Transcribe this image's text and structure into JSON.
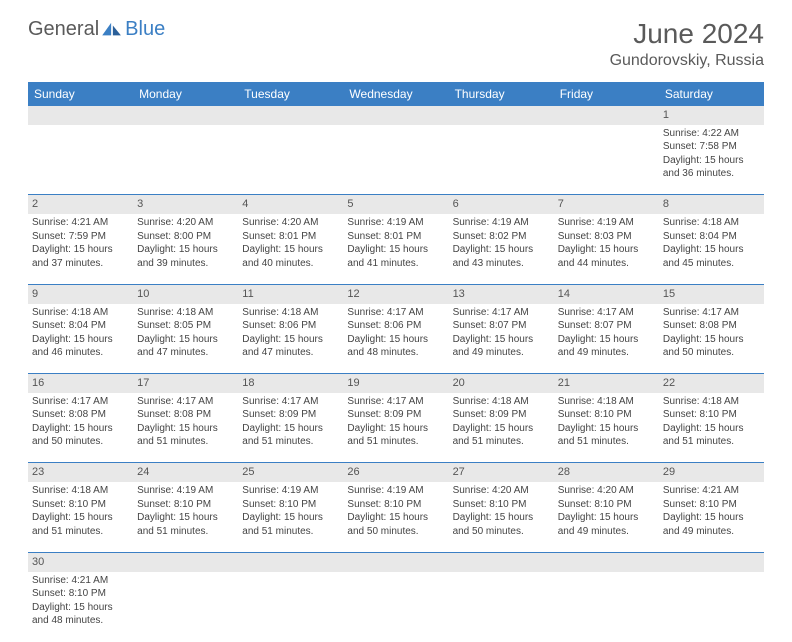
{
  "brand": {
    "part1": "General",
    "part2": "Blue"
  },
  "title": "June 2024",
  "location": "Gundorovskiy, Russia",
  "colors": {
    "header_bg": "#3b7fc4",
    "header_text": "#ffffff",
    "daynum_bg": "#e8e8e8",
    "border": "#3b7fc4",
    "text": "#444444",
    "brand_gray": "#5a5a5a",
    "brand_blue": "#3b7fc4"
  },
  "weekdays": [
    "Sunday",
    "Monday",
    "Tuesday",
    "Wednesday",
    "Thursday",
    "Friday",
    "Saturday"
  ],
  "weeks": [
    [
      null,
      null,
      null,
      null,
      null,
      null,
      {
        "n": "1",
        "sr": "4:22 AM",
        "ss": "7:58 PM",
        "dl": "15 hours and 36 minutes."
      }
    ],
    [
      {
        "n": "2",
        "sr": "4:21 AM",
        "ss": "7:59 PM",
        "dl": "15 hours and 37 minutes."
      },
      {
        "n": "3",
        "sr": "4:20 AM",
        "ss": "8:00 PM",
        "dl": "15 hours and 39 minutes."
      },
      {
        "n": "4",
        "sr": "4:20 AM",
        "ss": "8:01 PM",
        "dl": "15 hours and 40 minutes."
      },
      {
        "n": "5",
        "sr": "4:19 AM",
        "ss": "8:01 PM",
        "dl": "15 hours and 41 minutes."
      },
      {
        "n": "6",
        "sr": "4:19 AM",
        "ss": "8:02 PM",
        "dl": "15 hours and 43 minutes."
      },
      {
        "n": "7",
        "sr": "4:19 AM",
        "ss": "8:03 PM",
        "dl": "15 hours and 44 minutes."
      },
      {
        "n": "8",
        "sr": "4:18 AM",
        "ss": "8:04 PM",
        "dl": "15 hours and 45 minutes."
      }
    ],
    [
      {
        "n": "9",
        "sr": "4:18 AM",
        "ss": "8:04 PM",
        "dl": "15 hours and 46 minutes."
      },
      {
        "n": "10",
        "sr": "4:18 AM",
        "ss": "8:05 PM",
        "dl": "15 hours and 47 minutes."
      },
      {
        "n": "11",
        "sr": "4:18 AM",
        "ss": "8:06 PM",
        "dl": "15 hours and 47 minutes."
      },
      {
        "n": "12",
        "sr": "4:17 AM",
        "ss": "8:06 PM",
        "dl": "15 hours and 48 minutes."
      },
      {
        "n": "13",
        "sr": "4:17 AM",
        "ss": "8:07 PM",
        "dl": "15 hours and 49 minutes."
      },
      {
        "n": "14",
        "sr": "4:17 AM",
        "ss": "8:07 PM",
        "dl": "15 hours and 49 minutes."
      },
      {
        "n": "15",
        "sr": "4:17 AM",
        "ss": "8:08 PM",
        "dl": "15 hours and 50 minutes."
      }
    ],
    [
      {
        "n": "16",
        "sr": "4:17 AM",
        "ss": "8:08 PM",
        "dl": "15 hours and 50 minutes."
      },
      {
        "n": "17",
        "sr": "4:17 AM",
        "ss": "8:08 PM",
        "dl": "15 hours and 51 minutes."
      },
      {
        "n": "18",
        "sr": "4:17 AM",
        "ss": "8:09 PM",
        "dl": "15 hours and 51 minutes."
      },
      {
        "n": "19",
        "sr": "4:17 AM",
        "ss": "8:09 PM",
        "dl": "15 hours and 51 minutes."
      },
      {
        "n": "20",
        "sr": "4:18 AM",
        "ss": "8:09 PM",
        "dl": "15 hours and 51 minutes."
      },
      {
        "n": "21",
        "sr": "4:18 AM",
        "ss": "8:10 PM",
        "dl": "15 hours and 51 minutes."
      },
      {
        "n": "22",
        "sr": "4:18 AM",
        "ss": "8:10 PM",
        "dl": "15 hours and 51 minutes."
      }
    ],
    [
      {
        "n": "23",
        "sr": "4:18 AM",
        "ss": "8:10 PM",
        "dl": "15 hours and 51 minutes."
      },
      {
        "n": "24",
        "sr": "4:19 AM",
        "ss": "8:10 PM",
        "dl": "15 hours and 51 minutes."
      },
      {
        "n": "25",
        "sr": "4:19 AM",
        "ss": "8:10 PM",
        "dl": "15 hours and 51 minutes."
      },
      {
        "n": "26",
        "sr": "4:19 AM",
        "ss": "8:10 PM",
        "dl": "15 hours and 50 minutes."
      },
      {
        "n": "27",
        "sr": "4:20 AM",
        "ss": "8:10 PM",
        "dl": "15 hours and 50 minutes."
      },
      {
        "n": "28",
        "sr": "4:20 AM",
        "ss": "8:10 PM",
        "dl": "15 hours and 49 minutes."
      },
      {
        "n": "29",
        "sr": "4:21 AM",
        "ss": "8:10 PM",
        "dl": "15 hours and 49 minutes."
      }
    ],
    [
      {
        "n": "30",
        "sr": "4:21 AM",
        "ss": "8:10 PM",
        "dl": "15 hours and 48 minutes."
      },
      null,
      null,
      null,
      null,
      null,
      null
    ]
  ],
  "labels": {
    "sunrise": "Sunrise: ",
    "sunset": "Sunset: ",
    "daylight": "Daylight: "
  }
}
